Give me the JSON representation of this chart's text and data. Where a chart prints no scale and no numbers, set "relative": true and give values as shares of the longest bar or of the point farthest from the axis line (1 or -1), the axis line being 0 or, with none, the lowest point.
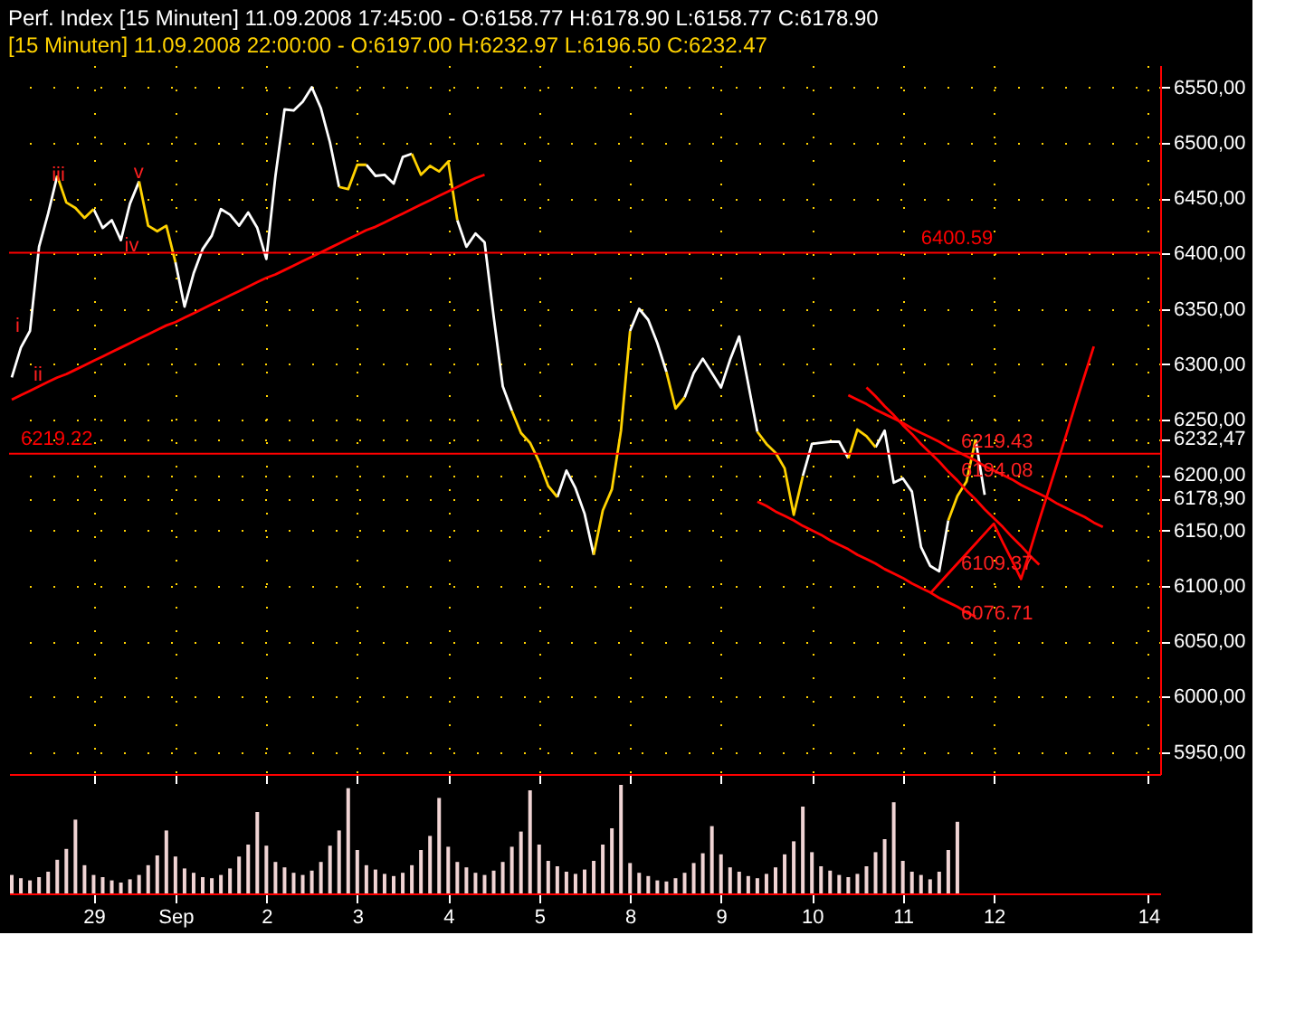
{
  "chart_data": [
    {
      "type": "line",
      "title": "Perf. Index [15 Minuten] 11.09.2008 17:45:00 - O:6158.77 H:6178.90 L:6158.77 C:6178.90",
      "subtitle": "[15 Minuten] 11.09.2008 22:00:00 - O:6197.00 H:6232.97 L:6196.50 C:6232.47",
      "categories": [
        null,
        null,
        null,
        null,
        null,
        null,
        null,
        null,
        null,
        "29",
        null,
        null,
        null,
        null,
        null,
        null,
        null,
        null,
        "Sep",
        null,
        null,
        null,
        null,
        null,
        null,
        null,
        null,
        null,
        "2",
        null,
        null,
        null,
        null,
        null,
        null,
        null,
        null,
        null,
        "3",
        null,
        null,
        null,
        null,
        null,
        null,
        null,
        null,
        null,
        "4",
        null,
        null,
        null,
        null,
        null,
        null,
        null,
        null,
        null,
        "5",
        null,
        null,
        null,
        null,
        null,
        null,
        null,
        null,
        null,
        "8",
        null,
        null,
        null,
        null,
        null,
        null,
        null,
        null,
        null,
        "9",
        null,
        null,
        null,
        null,
        null,
        null,
        null,
        null,
        null,
        "10",
        null,
        null,
        null,
        null,
        null,
        null,
        null,
        null,
        null,
        "11",
        null,
        null,
        null,
        null,
        null,
        null,
        null,
        null,
        null,
        "12",
        null,
        null,
        null,
        null,
        null,
        null,
        null,
        null,
        null,
        null,
        null,
        null,
        null,
        null,
        null,
        null,
        "14",
        null
      ],
      "ylim": [
        5930,
        6570
      ],
      "yticks": [
        {
          "value": 5950,
          "label": "5950,00"
        },
        {
          "value": 6000,
          "label": "6000,00"
        },
        {
          "value": 6050,
          "label": "6050,00"
        },
        {
          "value": 6100,
          "label": "6100,00"
        },
        {
          "value": 6150,
          "label": "6150,00"
        },
        {
          "value": 6178.9,
          "label": "6178,90"
        },
        {
          "value": 6200,
          "label": "6200,00"
        },
        {
          "value": 6232.47,
          "label": "6232,47"
        },
        {
          "value": 6250,
          "label": "6250,00"
        },
        {
          "value": 6300,
          "label": "6300,00"
        },
        {
          "value": 6350,
          "label": "6350,00"
        },
        {
          "value": 6400,
          "label": "6400,00"
        },
        {
          "value": 6450,
          "label": "6450,00"
        },
        {
          "value": 6500,
          "label": "6500,00"
        },
        {
          "value": 6550,
          "label": "6550,00"
        }
      ],
      "tick_labels": "y",
      "grid": true,
      "series": [
        {
          "color": "#ffffff",
          "values": [
            6288,
            6315,
            6330,
            6406,
            6436,
            6470,
            null,
            null,
            null,
            6440,
            6423,
            6430,
            6412,
            6445,
            6465,
            null,
            null,
            null,
            6392,
            6352,
            6382,
            6404,
            6416,
            6440,
            6435,
            6425,
            6437,
            6423,
            6395,
            6470,
            6530,
            6529,
            6537,
            6550,
            6531,
            6500,
            6460,
            null,
            null,
            6480,
            6470,
            6471,
            6463,
            6487,
            6490,
            null,
            null,
            null,
            null,
            6430,
            6406,
            6418,
            6410,
            6343,
            6280,
            6258,
            null,
            null,
            null,
            null,
            6180,
            6204,
            6188,
            6165,
            6128,
            null,
            null,
            null,
            6330,
            6350,
            6340,
            6319,
            6293,
            null,
            6270,
            6292,
            6305,
            6292,
            6279,
            6304,
            6325,
            6282,
            6239,
            null,
            null,
            null,
            null,
            6199,
            6228,
            6229,
            6230,
            6230,
            6215,
            null,
            null,
            6225,
            6240,
            6193,
            6197,
            6185,
            6135,
            6118,
            6113,
            6159,
            null,
            null,
            6232,
            6182,
            null,
            null,
            null,
            null,
            null,
            null,
            null,
            null,
            null,
            null,
            null,
            null,
            null,
            null,
            null,
            null,
            null,
            null,
            null
          ]
        },
        {
          "color": "#ffd200",
          "values": [
            null,
            null,
            null,
            null,
            null,
            6470,
            6446,
            6441,
            6432,
            6440,
            null,
            null,
            null,
            null,
            6465,
            6425,
            6420,
            6425,
            6392,
            null,
            null,
            null,
            null,
            null,
            null,
            null,
            null,
            null,
            null,
            null,
            null,
            null,
            null,
            null,
            null,
            null,
            6460,
            6458,
            6480,
            6480,
            null,
            null,
            null,
            null,
            6490,
            6471,
            6479,
            6474,
            6483,
            6430,
            null,
            null,
            null,
            null,
            null,
            6258,
            6238,
            6229,
            6212,
            6190,
            6180,
            null,
            null,
            null,
            6128,
            6168,
            6187,
            6240,
            6330,
            null,
            null,
            null,
            6293,
            6260,
            6270,
            null,
            null,
            null,
            null,
            null,
            null,
            null,
            6239,
            6228,
            6220,
            6206,
            6164,
            6199,
            null,
            null,
            null,
            null,
            6215,
            6241,
            6235,
            6225,
            null,
            null,
            null,
            null,
            null,
            null,
            null,
            6159,
            6181,
            6194,
            6232,
            null,
            null,
            null,
            null,
            null,
            null,
            null,
            null,
            null,
            null,
            null,
            null,
            null,
            null,
            null,
            null,
            null,
            null,
            null,
            null
          ]
        },
        {
          "type": "line",
          "color": "#ff0000",
          "values": [
            6268,
            6272,
            6276,
            6280,
            6284,
            6288,
            6291,
            6295,
            6299,
            6303,
            6307,
            6311,
            6315,
            6319,
            6323,
            6327,
            6331,
            6335,
            6338,
            6342,
            6346,
            6350,
            6354,
            6358,
            6362,
            6366,
            6370,
            6374,
            6378,
            6381,
            6385,
            6389,
            6393,
            6397,
            6401,
            6405,
            6409,
            6413,
            6417,
            6421,
            6424,
            6428,
            6432,
            6436,
            6440,
            6444,
            6448,
            6452,
            6456,
            6460,
            6464,
            6468,
            6471,
            null,
            null,
            null,
            null,
            null,
            null,
            null,
            null,
            null,
            null,
            null,
            null,
            null,
            null,
            null,
            null,
            null,
            null,
            null,
            null,
            null,
            null,
            null,
            null,
            null,
            null,
            null,
            null,
            null,
            null,
            null,
            null,
            null,
            null,
            null,
            null,
            null,
            null,
            null,
            null,
            null,
            null,
            null,
            null,
            null,
            null,
            null,
            null,
            null,
            null,
            null,
            null,
            null,
            null,
            null,
            null,
            null,
            null,
            null,
            null,
            null,
            null,
            null,
            null,
            null,
            null,
            null,
            null,
            null,
            null,
            null,
            null,
            null,
            null
          ]
        },
        {
          "type": "line",
          "color": "#ff0000",
          "values": [
            null,
            null,
            null,
            null,
            null,
            null,
            null,
            null,
            null,
            null,
            null,
            null,
            null,
            null,
            null,
            null,
            null,
            null,
            null,
            null,
            null,
            null,
            null,
            null,
            null,
            null,
            null,
            null,
            null,
            null,
            null,
            null,
            null,
            null,
            null,
            null,
            null,
            null,
            null,
            null,
            null,
            null,
            null,
            null,
            null,
            null,
            null,
            null,
            null,
            null,
            null,
            null,
            null,
            null,
            null,
            null,
            null,
            null,
            null,
            null,
            null,
            null,
            null,
            null,
            null,
            null,
            null,
            null,
            null,
            null,
            null,
            null,
            null,
            null,
            null,
            null,
            null,
            null,
            null,
            null,
            null,
            null,
            6176,
            6172,
            6167,
            6163,
            6159,
            6154,
            6150,
            6146,
            6141,
            6137,
            6133,
            6128,
            6124,
            6120,
            6115,
            6111,
            6107,
            6102,
            6098,
            6094,
            6089,
            6085,
            6081,
            6076,
            6072,
            null,
            null,
            null,
            null,
            null,
            null,
            null,
            null,
            null,
            null,
            null,
            null,
            null,
            null,
            null,
            null,
            null,
            null,
            null,
            null
          ]
        },
        {
          "type": "line",
          "color": "#ff0000",
          "values": [
            null,
            null,
            null,
            null,
            null,
            null,
            null,
            null,
            null,
            null,
            null,
            null,
            null,
            null,
            null,
            null,
            null,
            null,
            null,
            null,
            null,
            null,
            null,
            null,
            null,
            null,
            null,
            null,
            null,
            null,
            null,
            null,
            null,
            null,
            null,
            null,
            null,
            null,
            null,
            null,
            null,
            null,
            null,
            null,
            null,
            null,
            null,
            null,
            null,
            null,
            null,
            null,
            null,
            null,
            null,
            null,
            null,
            null,
            null,
            null,
            null,
            null,
            null,
            null,
            null,
            null,
            null,
            null,
            null,
            null,
            null,
            null,
            null,
            null,
            null,
            null,
            null,
            null,
            null,
            null,
            null,
            null,
            null,
            null,
            null,
            null,
            null,
            null,
            null,
            null,
            null,
            null,
            6272,
            6268,
            6264,
            6259,
            6255,
            6251,
            6247,
            6242,
            6238,
            6234,
            6230,
            6225,
            6221,
            6217,
            6213,
            6208,
            6204,
            6200,
            6196,
            6191,
            6187,
            6183,
            6179,
            6174,
            6170,
            6166,
            6162,
            6157,
            6153,
            null,
            null,
            null,
            null,
            null,
            null
          ]
        },
        {
          "type": "line",
          "color": "#ff0000",
          "values": [
            null,
            null,
            null,
            null,
            null,
            null,
            null,
            null,
            null,
            null,
            null,
            null,
            null,
            null,
            null,
            null,
            null,
            null,
            null,
            null,
            null,
            null,
            null,
            null,
            null,
            null,
            null,
            null,
            null,
            null,
            null,
            null,
            null,
            null,
            null,
            null,
            null,
            null,
            null,
            null,
            null,
            null,
            null,
            null,
            null,
            null,
            null,
            null,
            null,
            null,
            null,
            null,
            null,
            null,
            null,
            null,
            null,
            null,
            null,
            null,
            null,
            null,
            null,
            null,
            null,
            null,
            null,
            null,
            null,
            null,
            null,
            null,
            null,
            null,
            null,
            null,
            null,
            null,
            null,
            null,
            null,
            null,
            null,
            null,
            null,
            null,
            null,
            null,
            null,
            null,
            null,
            null,
            null,
            null,
            6279,
            6271,
            6262,
            6254,
            6245,
            6237,
            6228,
            6220,
            6212,
            6203,
            6195,
            6186,
            6178,
            6169,
            6161,
            6153,
            6144,
            6136,
            6127,
            6119,
            null,
            null,
            null,
            null,
            null,
            null,
            null,
            null,
            null,
            null,
            null,
            null,
            null
          ]
        },
        {
          "type": "line",
          "color": "#ff0000",
          "values": [
            null,
            null,
            null,
            null,
            null,
            null,
            null,
            null,
            null,
            null,
            null,
            null,
            null,
            null,
            null,
            null,
            null,
            null,
            null,
            null,
            null,
            null,
            null,
            null,
            null,
            null,
            null,
            null,
            null,
            null,
            null,
            null,
            null,
            null,
            null,
            null,
            null,
            null,
            null,
            null,
            null,
            null,
            null,
            null,
            null,
            null,
            null,
            null,
            null,
            null,
            null,
            null,
            null,
            null,
            null,
            null,
            null,
            null,
            null,
            null,
            null,
            null,
            null,
            null,
            null,
            null,
            null,
            null,
            null,
            null,
            null,
            null,
            null,
            null,
            null,
            null,
            null,
            null,
            null,
            null,
            null,
            null,
            null,
            null,
            null,
            null,
            null,
            null,
            null,
            null,
            null,
            null,
            null,
            null,
            null,
            null,
            null,
            null,
            null,
            null,
            null,
            6093,
            6102,
            6111,
            6120,
            6129,
            6138,
            6147,
            6156,
            6139,
            6123,
            6106,
            6132,
            6159,
            6185,
            6211,
            6237,
            6264,
            6290,
            6316,
            null,
            null,
            null,
            null,
            null,
            null,
            null
          ]
        }
      ],
      "ref_lines": [
        {
          "axis": "y",
          "value": 6400.59,
          "label": "6400.59",
          "color": "#ff0000"
        },
        {
          "axis": "y",
          "value": 6219.22,
          "label": "6219.22",
          "color": "#ff0000"
        }
      ],
      "annotations": [
        {
          "text": "i",
          "y": 6324
        },
        {
          "text": "ii",
          "y": 6280
        },
        {
          "text": "iii",
          "y": 6461
        },
        "iv",
        {
          "text": "v",
          "y": 6463
        },
        {
          "text": "6219.43",
          "y": 6219.43
        },
        {
          "text": "6194.08",
          "y": 6194.08
        },
        "6109.37",
        "6076.71"
      ]
    },
    {
      "type": "bar",
      "relative": true,
      "color": "#f0d4d4",
      "tick_labels": "x",
      "categories": [
        null,
        null,
        null,
        null,
        null,
        null,
        null,
        null,
        null,
        null,
        null,
        null,
        null,
        null,
        null,
        null,
        null,
        null,
        null,
        null,
        null,
        null,
        null,
        null,
        null,
        null,
        null,
        null,
        null,
        null,
        null,
        null,
        null,
        null,
        null,
        null,
        null,
        null,
        null,
        null,
        null,
        null,
        null,
        null,
        null,
        null,
        null,
        null,
        null,
        null,
        null,
        null,
        null,
        null,
        null,
        null,
        null,
        null,
        null,
        null,
        null,
        null,
        null,
        null,
        null,
        null,
        null,
        null,
        null,
        null,
        null,
        null,
        null,
        null,
        null,
        null,
        null,
        null,
        null,
        null,
        null,
        null,
        null,
        null,
        null,
        null,
        null,
        null,
        null,
        null,
        null,
        null,
        null,
        null,
        null,
        null,
        null,
        null,
        null,
        null,
        null,
        null,
        null,
        null,
        null,
        null,
        null,
        null,
        null,
        null,
        null,
        null,
        null,
        null,
        null,
        null,
        null,
        null,
        null,
        null,
        null,
        null,
        null,
        null,
        null,
        null,
        null
      ],
      "values": [
        0.17,
        0.14,
        0.12,
        0.15,
        0.2,
        0.31,
        0.41,
        0.68,
        0.26,
        0.17,
        0.15,
        0.12,
        0.1,
        0.13,
        0.17,
        0.26,
        0.35,
        0.58,
        0.34,
        0.23,
        0.19,
        0.15,
        0.14,
        0.17,
        0.23,
        0.34,
        0.45,
        0.75,
        0.44,
        0.29,
        0.24,
        0.19,
        0.17,
        0.21,
        0.29,
        0.44,
        0.58,
        0.97,
        0.4,
        0.26,
        0.22,
        0.18,
        0.16,
        0.19,
        0.26,
        0.4,
        0.53,
        0.88,
        0.43,
        0.29,
        0.24,
        0.19,
        0.17,
        0.21,
        0.29,
        0.43,
        0.57,
        0.95,
        0.45,
        0.3,
        0.25,
        0.2,
        0.18,
        0.22,
        0.3,
        0.45,
        0.6,
        1,
        0.28,
        0.19,
        0.16,
        0.12,
        0.11,
        0.14,
        0.19,
        0.28,
        0.37,
        0.62,
        0.36,
        0.24,
        0.2,
        0.16,
        0.14,
        0.18,
        0.24,
        0.36,
        0.48,
        0.8,
        0.38,
        0.25,
        0.21,
        0.17,
        0.15,
        0.18,
        0.25,
        0.38,
        0.5,
        0.84,
        0.3,
        0.2,
        0.17,
        0.13,
        0.2,
        0.4,
        0.66,
        null,
        null,
        null,
        null,
        null,
        null,
        null,
        null,
        null,
        null,
        null,
        null,
        null,
        null,
        null,
        null,
        null,
        null,
        null,
        null,
        null,
        null
      ]
    }
  ]
}
